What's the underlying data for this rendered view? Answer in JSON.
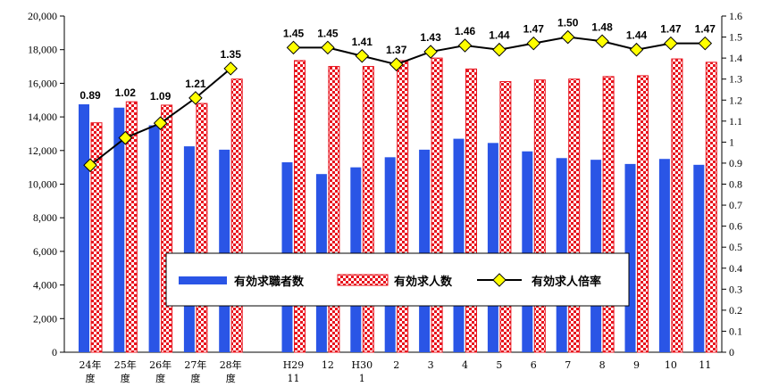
{
  "chart_data": {
    "type": "bar",
    "title": "",
    "categories": [
      [
        "24年",
        "度"
      ],
      [
        "25年",
        "度"
      ],
      [
        "26年",
        "度"
      ],
      [
        "27年",
        "度"
      ],
      [
        "28年",
        "度"
      ],
      [
        "H29",
        "11"
      ],
      [
        "12"
      ],
      [
        "H30",
        "1"
      ],
      [
        "2"
      ],
      [
        "3"
      ],
      [
        "4"
      ],
      [
        "5"
      ],
      [
        "6"
      ],
      [
        "7"
      ],
      [
        "8"
      ],
      [
        "9"
      ],
      [
        "10"
      ],
      [
        "11"
      ]
    ],
    "series": [
      {
        "name": "有効求職者数",
        "type": "bar",
        "axis": "left",
        "color": "#2a55e6",
        "values": [
          14750,
          14550,
          13500,
          12250,
          12050,
          11300,
          10600,
          11000,
          11600,
          12050,
          12700,
          12450,
          11950,
          11550,
          11450,
          11200,
          11500,
          11150
        ]
      },
      {
        "name": "有効求人数",
        "type": "bar",
        "axis": "left",
        "color": "#e8141e",
        "values": [
          13650,
          14900,
          14700,
          14800,
          16250,
          17350,
          17000,
          17000,
          17350,
          17500,
          16850,
          16100,
          16200,
          16250,
          16400,
          16450,
          17450,
          17250
        ]
      },
      {
        "name": "有効求人倍率",
        "type": "line",
        "axis": "right",
        "color": "#000000",
        "markerColor": "#ffff00",
        "values": [
          0.89,
          1.02,
          1.09,
          1.21,
          1.35,
          1.45,
          1.45,
          1.41,
          1.37,
          1.43,
          1.46,
          1.44,
          1.47,
          1.5,
          1.48,
          1.44,
          1.47,
          1.47
        ],
        "labels": [
          "0.89",
          "1.02",
          "1.09",
          "1.21",
          "1.35",
          "1.45",
          "1.45",
          "1.41",
          "1.37",
          "1.43",
          "1.46",
          "1.44",
          "1.47",
          "1.50",
          "1.48",
          "1.44",
          "1.47",
          "1.47"
        ]
      }
    ],
    "y_left": {
      "range": [
        0,
        20000
      ],
      "ticks": [
        0,
        2000,
        4000,
        6000,
        8000,
        10000,
        12000,
        14000,
        16000,
        18000,
        20000
      ],
      "tick_labels": [
        "0",
        "2,000",
        "4,000",
        "6,000",
        "8,000",
        "10,000",
        "12,000",
        "14,000",
        "16,000",
        "18,000",
        "20,000"
      ]
    },
    "y_right": {
      "range": [
        0,
        1.6
      ],
      "ticks": [
        0,
        0.1,
        0.2,
        0.3,
        0.4,
        0.5,
        0.6,
        0.7,
        0.8,
        0.9,
        1.0,
        1.1,
        1.2,
        1.3,
        1.4,
        1.5,
        1.6
      ],
      "tick_labels": [
        "0",
        "0.1",
        "0.2",
        "0.3",
        "0.4",
        "0.5",
        "0.6",
        "0.7",
        "0.8",
        "0.9",
        "1",
        "1.1",
        "1.2",
        "1.3",
        "1.4",
        "1.5",
        "1.6"
      ]
    },
    "grid": false,
    "legend": {
      "placement": "center",
      "items": [
        "有効求職者数",
        "有効求人数",
        "有効求人倍率"
      ]
    }
  }
}
